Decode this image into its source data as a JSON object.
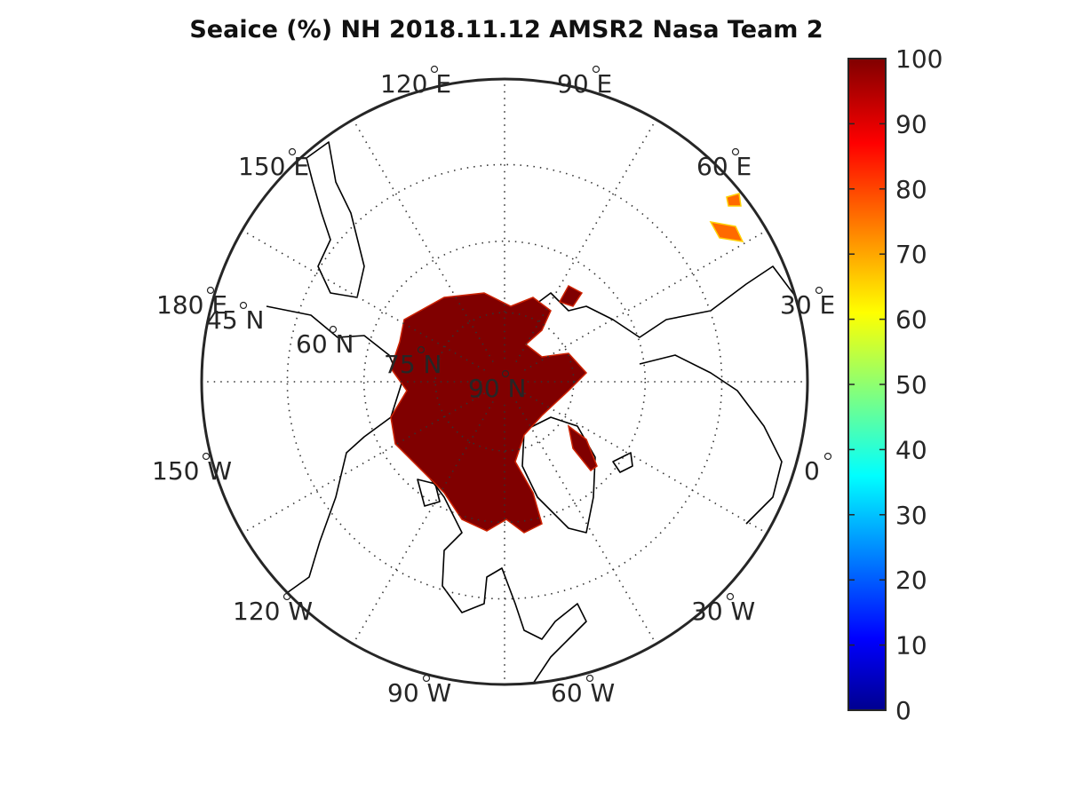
{
  "title": "Seaice (%) NH 2018.11.12 AMSR2 Nasa Team 2",
  "map": {
    "projection": "north-polar-stereographic",
    "meridian_labels": [
      {
        "key": "m120e",
        "text": "120 E"
      },
      {
        "key": "m90e",
        "text": "90 E"
      },
      {
        "key": "m60e",
        "text": "60 E"
      },
      {
        "key": "m30e",
        "text": "30 E"
      },
      {
        "key": "m0",
        "text": "0"
      },
      {
        "key": "m30w",
        "text": "30 W"
      },
      {
        "key": "m60w",
        "text": "60 W"
      },
      {
        "key": "m90w",
        "text": "90 W"
      },
      {
        "key": "m120w",
        "text": "120 W"
      },
      {
        "key": "m150w",
        "text": "150 W"
      },
      {
        "key": "m180",
        "text": "180 E"
      },
      {
        "key": "m150e",
        "text": "150 E"
      }
    ],
    "parallel_labels": [
      {
        "key": "p45",
        "text": "45 N"
      },
      {
        "key": "p60",
        "text": "60 N"
      },
      {
        "key": "p75",
        "text": "75 N"
      },
      {
        "key": "p90",
        "text": "90 N"
      }
    ],
    "parallels_deg": [
      45,
      60,
      75
    ],
    "meridians_deg": [
      0,
      30,
      60,
      90,
      120,
      150,
      180,
      210,
      240,
      270,
      300,
      330
    ],
    "ice_color": "#800000"
  },
  "colorbar": {
    "colormap": "jet",
    "min": 0,
    "max": 100,
    "ticks": [
      "0",
      "10",
      "20",
      "30",
      "40",
      "50",
      "60",
      "70",
      "80",
      "90",
      "100"
    ]
  }
}
